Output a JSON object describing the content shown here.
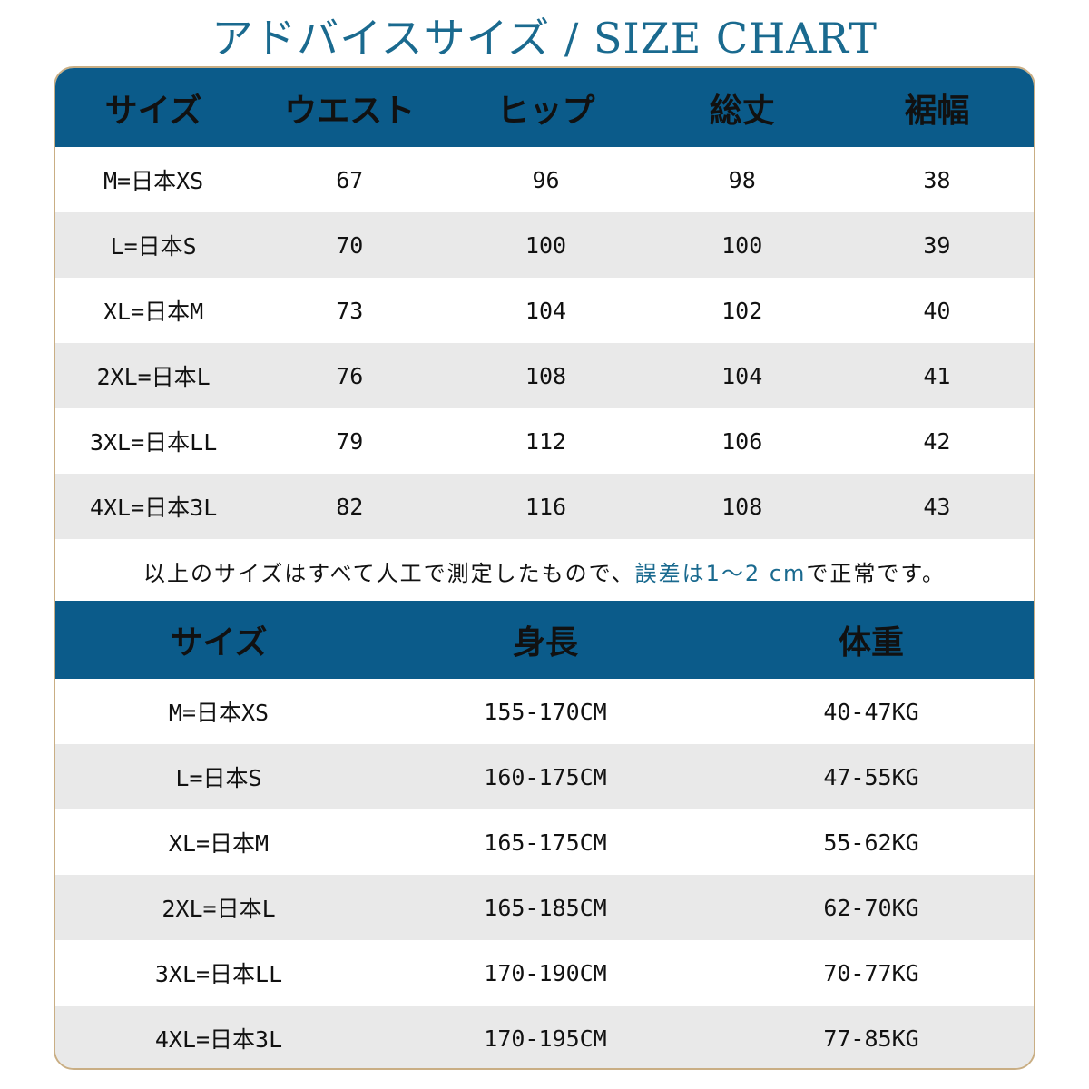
{
  "title": "アドバイスサイズ / SIZE CHART",
  "table1": {
    "headers": [
      "サイズ",
      "ウエスト",
      "ヒップ",
      "総丈",
      "裾幅"
    ],
    "rows": [
      [
        "M=日本XS",
        "67",
        "96",
        "98",
        "38"
      ],
      [
        "L=日本S",
        "70",
        "100",
        "100",
        "39"
      ],
      [
        "XL=日本M",
        "73",
        "104",
        "102",
        "40"
      ],
      [
        "2XL=日本L",
        "76",
        "108",
        "104",
        "41"
      ],
      [
        "3XL=日本LL",
        "79",
        "112",
        "106",
        "42"
      ],
      [
        "4XL=日本3L",
        "82",
        "116",
        "108",
        "43"
      ]
    ]
  },
  "note": {
    "before": "以上のサイズはすべて人工で測定したもので、",
    "highlight": "誤差は1〜2 cm",
    "after": "で正常です。"
  },
  "table2": {
    "headers": [
      "サイズ",
      "身長",
      "体重"
    ],
    "rows": [
      [
        "M=日本XS",
        "155-170CM",
        "40-47KG"
      ],
      [
        "L=日本S",
        "160-175CM",
        "47-55KG"
      ],
      [
        "XL=日本M",
        "165-175CM",
        "55-62KG"
      ],
      [
        "2XL=日本L",
        "165-185CM",
        "62-70KG"
      ],
      [
        "3XL=日本LL",
        "170-190CM",
        "70-77KG"
      ],
      [
        "4XL=日本3L",
        "170-195CM",
        "77-85KG"
      ]
    ]
  },
  "colors": {
    "header_bg": "#0b5b8a",
    "title": "#1a6a8f",
    "border": "#c9ae84",
    "row_shade": "#e9e9e9",
    "highlight": "#1a6a8f"
  }
}
